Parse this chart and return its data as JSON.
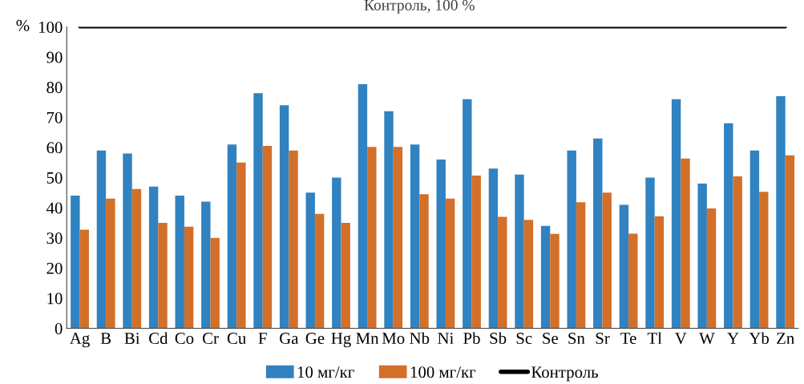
{
  "chart_data": {
    "type": "bar",
    "ylabel": "%",
    "categories": [
      "Ag",
      "B",
      "Bi",
      "Cd",
      "Co",
      "Cr",
      "Cu",
      "F",
      "Ga",
      "Ge",
      "Hg",
      "Mn",
      "Mo",
      "Nb",
      "Ni",
      "Pb",
      "Sb",
      "Sc",
      "Se",
      "Sn",
      "Sr",
      "Te",
      "Tl",
      "V",
      "W",
      "Y",
      "Yb",
      "Zn"
    ],
    "series": [
      {
        "name": "10 мг/кг",
        "color": "#3182c1",
        "values": [
          44,
          59,
          58,
          47,
          44,
          42,
          61,
          78,
          74,
          45,
          50,
          81,
          72,
          61,
          56,
          76,
          53,
          51,
          34,
          59,
          63,
          41,
          50,
          76,
          48,
          68,
          59,
          77
        ]
      },
      {
        "name": "100 мг/кг",
        "color": "#d2702a",
        "values": [
          32.7,
          43,
          46.2,
          35,
          33.7,
          30,
          55,
          60.5,
          59,
          38,
          35,
          60.2,
          60.2,
          44.5,
          43,
          50.7,
          37,
          36,
          31.3,
          41.8,
          45,
          31.4,
          37.2,
          56.3,
          39.8,
          50.4,
          45.3,
          57.4
        ]
      },
      {
        "name": "Контроль",
        "type": "line",
        "color": "#000000",
        "values": [
          100,
          100,
          100,
          100,
          100,
          100,
          100,
          100,
          100,
          100,
          100,
          100,
          100,
          100,
          100,
          100,
          100,
          100,
          100,
          100,
          100,
          100,
          100,
          100,
          100,
          100,
          100,
          100
        ]
      }
    ],
    "annotations": [
      {
        "text": "Контроль, 100 %",
        "x": "Nb",
        "y": 100
      }
    ],
    "ylim": [
      0,
      100
    ],
    "yticks": [
      0,
      10,
      20,
      30,
      40,
      50,
      60,
      70,
      80,
      90,
      100
    ],
    "grid": false,
    "legend": "bottom"
  }
}
